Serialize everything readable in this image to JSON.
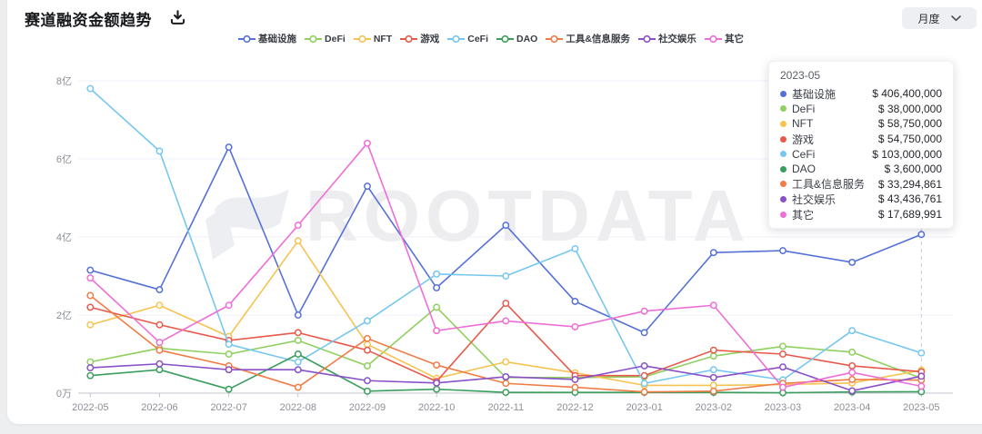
{
  "header": {
    "title": "赛道融资金额趋势",
    "period_label": "月度"
  },
  "icons": {
    "title_action": "tray-arrow-down",
    "period_selector": "chevron-down"
  },
  "watermark": "ROOTDATA",
  "tooltip": {
    "date": "2023-05",
    "rows": [
      {
        "name": "基础设施",
        "value": "$ 406,400,000"
      },
      {
        "name": "DeFi",
        "value": "$ 38,000,000"
      },
      {
        "name": "NFT",
        "value": "$ 58,750,000"
      },
      {
        "name": "游戏",
        "value": "$ 54,750,000"
      },
      {
        "name": "CeFi",
        "value": "$ 103,000,000"
      },
      {
        "name": "DAO",
        "value": "$ 3,600,000"
      },
      {
        "name": "工具&信息服务",
        "value": "$ 33,294,861"
      },
      {
        "name": "社交娱乐",
        "value": "$ 43,436,761"
      },
      {
        "name": "其它",
        "value": "$ 17,689,991"
      }
    ]
  },
  "chart_data": {
    "type": "line",
    "title": "赛道融资金额趋势",
    "x": [
      "2022-05",
      "2022-06",
      "2022-07",
      "2022-08",
      "2022-09",
      "2022-10",
      "2022-11",
      "2022-12",
      "2023-01",
      "2023-02",
      "2023-03",
      "2023-04",
      "2023-05"
    ],
    "y_ticks": [
      "0万",
      "2亿",
      "4亿",
      "6亿",
      "8亿"
    ],
    "ylim": [
      0,
      8
    ],
    "y_unit": "亿 (hundred million USD)",
    "grid": true,
    "legend_position": "top",
    "hover_x": "2023-05",
    "series": [
      {
        "name": "基础设施",
        "key": "infrastructure",
        "color": "#5571d8",
        "values": [
          3.15,
          2.65,
          6.3,
          2.0,
          5.3,
          2.7,
          4.3,
          2.35,
          1.55,
          3.6,
          3.65,
          3.35,
          4.064
        ]
      },
      {
        "name": "DeFi",
        "key": "defi",
        "color": "#8fd05f",
        "values": [
          0.8,
          1.15,
          1.0,
          1.35,
          0.7,
          2.2,
          0.4,
          0.4,
          0.42,
          0.95,
          1.2,
          1.05,
          0.38
        ]
      },
      {
        "name": "NFT",
        "key": "nft",
        "color": "#f6c350",
        "values": [
          1.75,
          2.25,
          1.45,
          3.9,
          1.25,
          0.38,
          0.8,
          0.52,
          0.2,
          0.2,
          0.22,
          0.26,
          0.5875
        ]
      },
      {
        "name": "游戏",
        "key": "gaming",
        "color": "#e8594c",
        "values": [
          2.2,
          1.75,
          1.35,
          1.55,
          1.1,
          0.3,
          2.3,
          0.45,
          0.45,
          1.1,
          1.0,
          0.7,
          0.5475
        ]
      },
      {
        "name": "CeFi",
        "key": "cefi",
        "color": "#76c7f0",
        "values": [
          7.8,
          6.2,
          1.25,
          0.8,
          1.85,
          3.05,
          3.0,
          3.7,
          0.25,
          0.6,
          0.34,
          1.6,
          1.03
        ]
      },
      {
        "name": "DAO",
        "key": "dao",
        "color": "#3a9e5d",
        "values": [
          0.45,
          0.6,
          0.1,
          1.0,
          0.05,
          0.1,
          0.02,
          0.02,
          0.02,
          0.02,
          0.01,
          0.03,
          0.036
        ]
      },
      {
        "name": "工具&信息服务",
        "key": "tools-info",
        "color": "#f07c46",
        "values": [
          2.5,
          1.1,
          0.7,
          0.15,
          1.4,
          0.72,
          0.25,
          0.15,
          0.03,
          0.05,
          0.25,
          0.35,
          0.333
        ]
      },
      {
        "name": "社交娱乐",
        "key": "social",
        "color": "#8a50c8",
        "values": [
          0.65,
          0.75,
          0.6,
          0.6,
          0.32,
          0.26,
          0.42,
          0.35,
          0.7,
          0.4,
          0.67,
          0.06,
          0.434
        ]
      },
      {
        "name": "其它",
        "key": "other",
        "color": "#ee6ed8",
        "values": [
          2.95,
          1.3,
          2.25,
          4.3,
          6.4,
          1.6,
          1.85,
          1.7,
          2.1,
          2.25,
          0.15,
          0.53,
          0.177
        ]
      }
    ]
  }
}
